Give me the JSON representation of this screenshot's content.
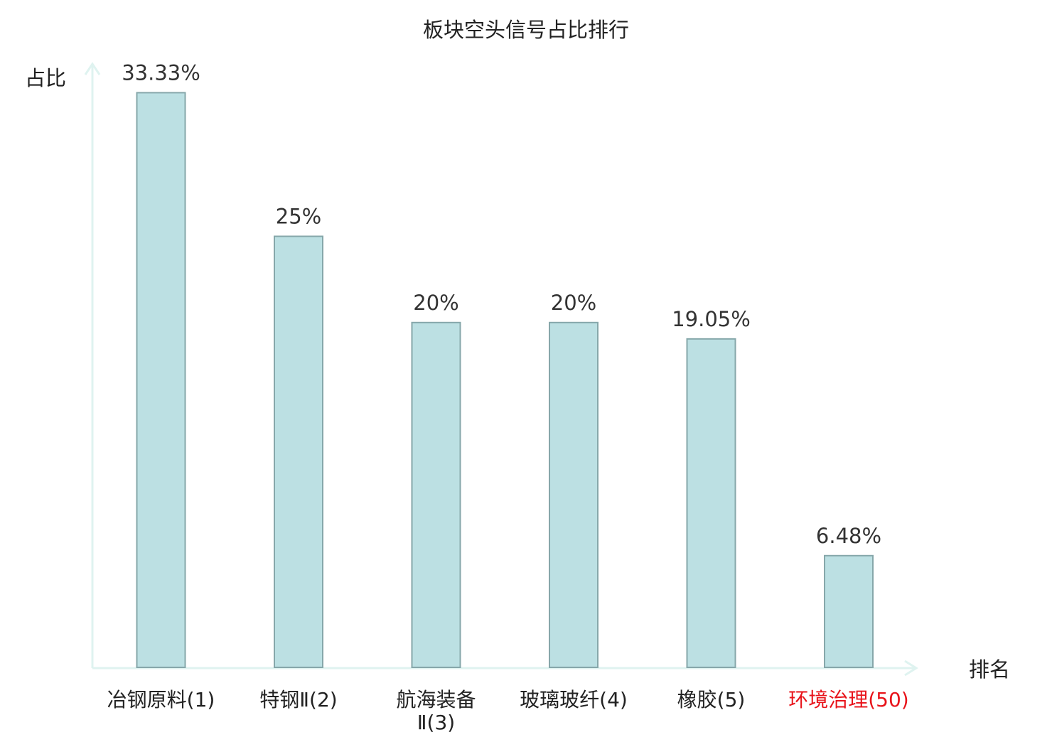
{
  "chart_data": {
    "type": "bar",
    "title": "板块空头信号占比排行",
    "ylabel": "占比",
    "xlabel": "排名",
    "categories": [
      [
        "冶钢原料(1)"
      ],
      [
        "特钢Ⅱ(2)"
      ],
      [
        "航海装备",
        "Ⅱ(3)"
      ],
      [
        "玻璃玻纤(4)"
      ],
      [
        "橡胶(5)"
      ],
      [
        "环境治理(50)"
      ]
    ],
    "values": [
      33.33,
      25,
      20,
      20,
      19.05,
      6.48
    ],
    "value_labels": [
      "33.33%",
      "25%",
      "20%",
      "20%",
      "19.05%",
      "6.48%"
    ],
    "highlight_index": 5,
    "ylim": [
      0,
      35
    ],
    "grid": false
  },
  "colors": {
    "bar_fill": "#bce0e3",
    "bar_stroke": "#86a7aa",
    "axis": "#dff3f0",
    "text": "#222222",
    "value_text": "#333333",
    "highlight": "#e8141b"
  }
}
